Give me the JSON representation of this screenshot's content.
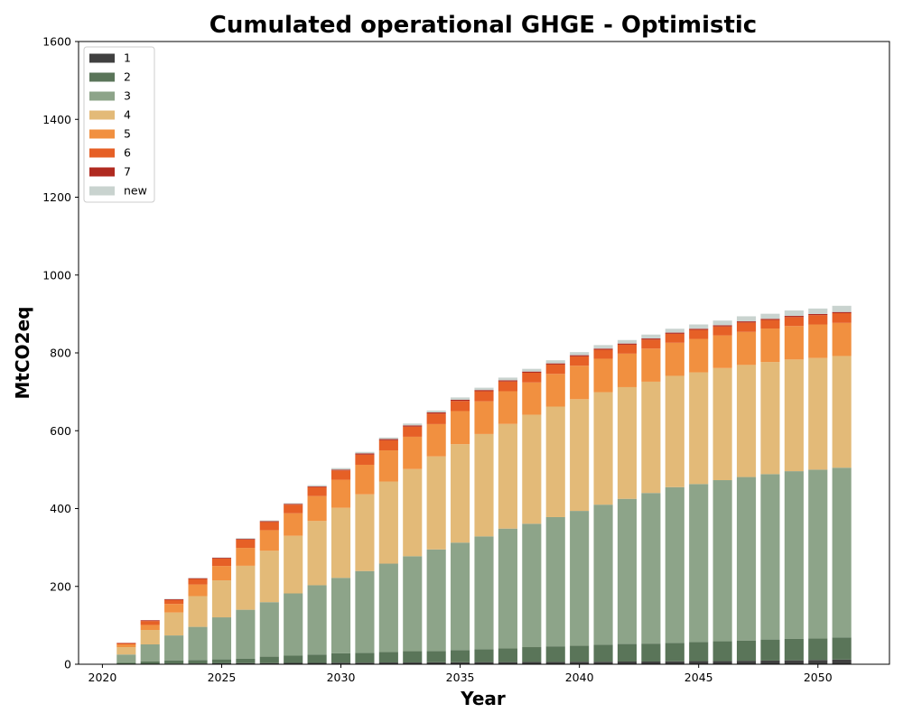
{
  "chart_data": {
    "type": "bar",
    "stacked": true,
    "title": "Cumulated operational GHGE - Optimistic",
    "xlabel": "Year",
    "ylabel": "MtCO2eq",
    "xlim": [
      2019,
      2053
    ],
    "ylim": [
      0,
      1600
    ],
    "xticks": [
      2020,
      2025,
      2030,
      2035,
      2040,
      2045,
      2050
    ],
    "yticks": [
      0,
      200,
      400,
      600,
      800,
      1000,
      1200,
      1400,
      1600
    ],
    "grid": false,
    "legend_position": "top-left",
    "x": [
      2021,
      2022,
      2023,
      2024,
      2025,
      2026,
      2027,
      2028,
      2029,
      2030,
      2031,
      2032,
      2033,
      2034,
      2035,
      2036,
      2037,
      2038,
      2039,
      2040,
      2041,
      2042,
      2043,
      2044,
      2045,
      2046,
      2047,
      2048,
      2049,
      2050,
      2051
    ],
    "series": [
      {
        "name": "1",
        "color": "#404040",
        "values": [
          0.5,
          1,
          1.5,
          2,
          2.5,
          3,
          3,
          3.5,
          3.5,
          4,
          4,
          4.5,
          4.5,
          5,
          5,
          5.5,
          5.5,
          6,
          6,
          6.5,
          6.5,
          7,
          7,
          7.5,
          8,
          8,
          9,
          9.5,
          10,
          11,
          12
        ]
      },
      {
        "name": "2",
        "color": "#5a7559",
        "values": [
          3,
          6,
          8.5,
          9,
          10,
          11,
          16.5,
          18.5,
          21.5,
          24,
          25.5,
          27,
          29,
          29,
          31.5,
          33,
          35,
          38,
          40,
          41.5,
          43.5,
          45,
          46,
          47.5,
          49,
          51,
          52,
          54,
          55,
          55,
          57
        ]
      },
      {
        "name": "3",
        "color": "#8da489",
        "values": [
          21.5,
          44,
          64,
          85,
          108,
          126,
          140,
          160,
          178,
          194,
          210,
          227,
          244,
          261,
          276,
          290,
          308,
          317,
          332,
          346,
          360,
          373,
          387,
          400,
          406,
          414,
          420,
          425,
          431,
          434,
          436
        ]
      },
      {
        "name": "4",
        "color": "#e3ba78",
        "values": [
          19,
          37,
          59,
          79,
          95,
          113,
          132,
          148,
          165,
          180,
          197,
          211,
          224,
          239,
          253,
          263,
          269,
          280,
          284,
          287,
          289,
          287,
          286,
          286,
          287,
          288,
          288,
          288,
          287,
          287,
          287
        ]
      },
      {
        "name": "5",
        "color": "#f19040",
        "values": [
          7,
          13,
          22,
          30,
          37,
          46,
          53,
          58,
          64,
          72,
          76,
          80,
          83,
          83,
          85,
          84,
          84,
          83,
          84,
          86,
          86,
          86,
          85,
          85,
          86,
          84,
          85,
          86,
          86,
          86,
          85
        ]
      },
      {
        "name": "6",
        "color": "#e66026",
        "values": [
          3,
          10,
          10,
          14,
          19,
          21,
          21,
          22,
          23,
          24,
          26,
          26,
          26,
          27,
          26,
          26,
          25,
          25,
          24,
          24,
          23,
          23,
          23,
          23,
          23,
          23,
          24,
          22,
          23,
          24,
          25
        ]
      },
      {
        "name": "7",
        "color": "#b02a20",
        "values": [
          1,
          2,
          2,
          2,
          2,
          2,
          2,
          2,
          2,
          2,
          3,
          3,
          3,
          3,
          3,
          3,
          3,
          3,
          3,
          3,
          3,
          3,
          3,
          3,
          3,
          3,
          3,
          3,
          3,
          3,
          3
        ]
      },
      {
        "name": "new",
        "color": "#c9d3cf",
        "values": [
          0,
          0,
          1,
          1,
          1,
          2,
          2,
          2,
          3,
          4,
          4,
          4,
          5,
          5,
          6,
          6,
          7,
          7,
          8,
          8,
          9,
          9,
          10,
          10,
          11,
          12,
          13,
          13,
          14,
          14,
          16
        ]
      }
    ]
  }
}
